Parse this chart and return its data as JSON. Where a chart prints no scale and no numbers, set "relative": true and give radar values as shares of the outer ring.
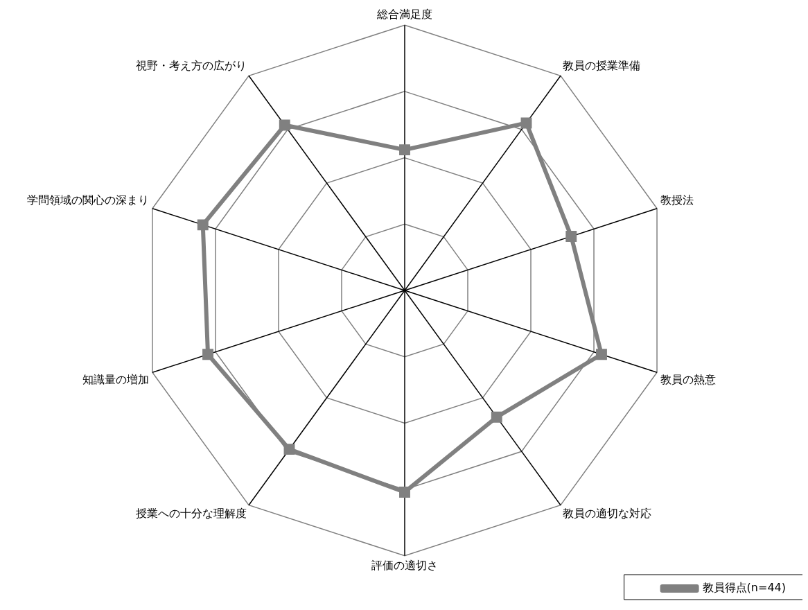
{
  "chart_data": {
    "type": "radar",
    "relative": true,
    "categories": [
      "総合満足度",
      "教員の授業準備",
      "教授法",
      "教員の熱意",
      "教員の適切な対応",
      "評価の適切さ",
      "授業への十分な理解度",
      "知識量の増加",
      "学問領域の関心の深まり",
      "視野・考え方の広がり"
    ],
    "series": [
      {
        "name": "教員得点(n=44)",
        "color": "#808080",
        "values": [
          0.53,
          0.78,
          0.66,
          0.78,
          0.59,
          0.76,
          0.74,
          0.78,
          0.8,
          0.77
        ]
      }
    ],
    "grid": true,
    "legend": "bottom right",
    "marker": "square",
    "line_style": "solid"
  }
}
